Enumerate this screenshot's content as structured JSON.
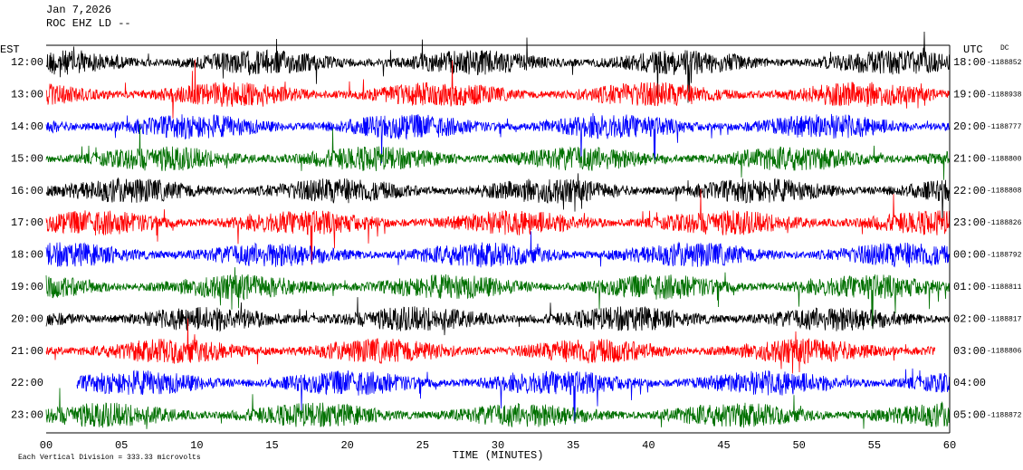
{
  "header": {
    "date": "Jan 7,2026",
    "station": "ROC EHZ LD --"
  },
  "left_axis": {
    "title": "EST"
  },
  "right_axis": {
    "title": "UTC",
    "note": "DC"
  },
  "rows": [
    {
      "est": "12:00",
      "utc": "18:00",
      "offset": "-1188852",
      "color": "#000000"
    },
    {
      "est": "13:00",
      "utc": "19:00",
      "offset": "-1188938",
      "color": "#ff0000"
    },
    {
      "est": "14:00",
      "utc": "20:00",
      "offset": "-1188777",
      "color": "#0000ff"
    },
    {
      "est": "15:00",
      "utc": "21:00",
      "offset": "-1188800",
      "color": "#007000"
    },
    {
      "est": "16:00",
      "utc": "22:00",
      "offset": "-1188808",
      "color": "#000000"
    },
    {
      "est": "17:00",
      "utc": "23:00",
      "offset": "-1188826",
      "color": "#ff0000"
    },
    {
      "est": "18:00",
      "utc": "00:00",
      "offset": "-1188792",
      "color": "#0000ff"
    },
    {
      "est": "19:00",
      "utc": "01:00",
      "offset": "-1188811",
      "color": "#007000"
    },
    {
      "est": "20:00",
      "utc": "02:00",
      "offset": "-1188817",
      "color": "#000000"
    },
    {
      "est": "21:00",
      "utc": "03:00",
      "offset": "-1188806",
      "color": "#ff0000"
    },
    {
      "est": "22:00",
      "utc": "04:00",
      "color": "#0000ff"
    },
    {
      "est": "23:00",
      "utc": "05:00",
      "offset": "-1188872",
      "color": "#007000"
    }
  ],
  "x_axis": {
    "title": "TIME (MINUTES)",
    "ticks": [
      "00",
      "05",
      "10",
      "15",
      "20",
      "25",
      "30",
      "35",
      "40",
      "45",
      "50",
      "55",
      "60"
    ]
  },
  "footer": "Each Vertical Division = 333.33 microvolts"
}
